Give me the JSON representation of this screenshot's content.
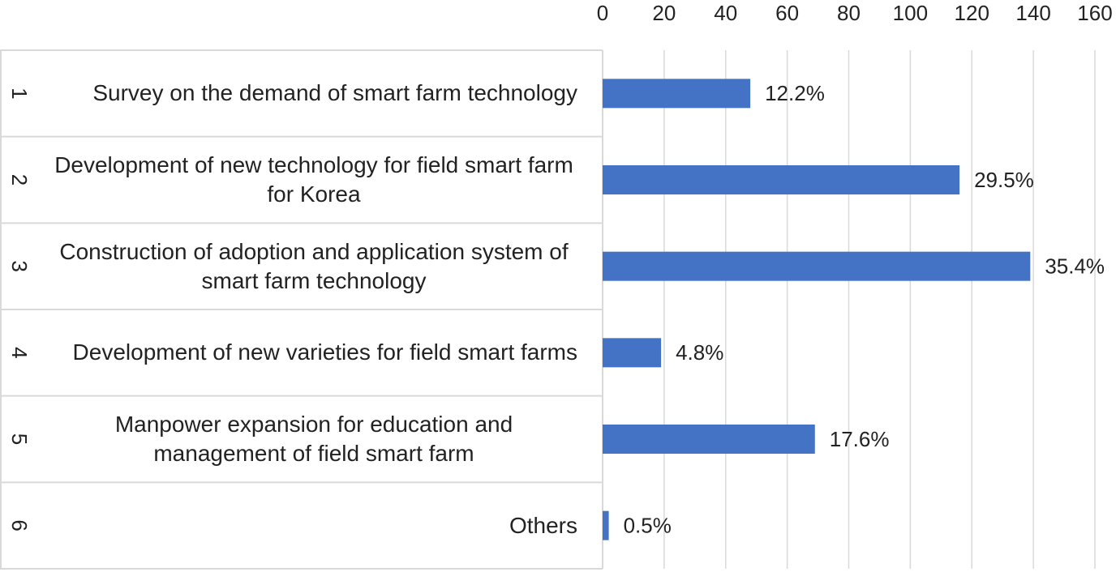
{
  "chart_data": {
    "type": "bar",
    "orientation": "horizontal",
    "groups": [
      "1",
      "2",
      "3",
      "4",
      "5",
      "6"
    ],
    "categories": [
      "Survey on the demand of smart farm technology",
      "Development of new technology for field smart farm for Korea",
      "Construction of adoption and application system of smart farm technology",
      "Development of new varieties for field smart farms",
      "Manpower expansion for education and management of field smart farm",
      "Others"
    ],
    "values": [
      48,
      116,
      139,
      19,
      69,
      2
    ],
    "value_labels": [
      "12.2%",
      "29.5%",
      "35.4%",
      "4.8%",
      "17.6%",
      "0.5%"
    ],
    "color": "#4472c4",
    "xlim": [
      0,
      160
    ],
    "xticks": [
      0,
      20,
      40,
      60,
      80,
      100,
      120,
      140,
      160
    ],
    "grid": true
  }
}
